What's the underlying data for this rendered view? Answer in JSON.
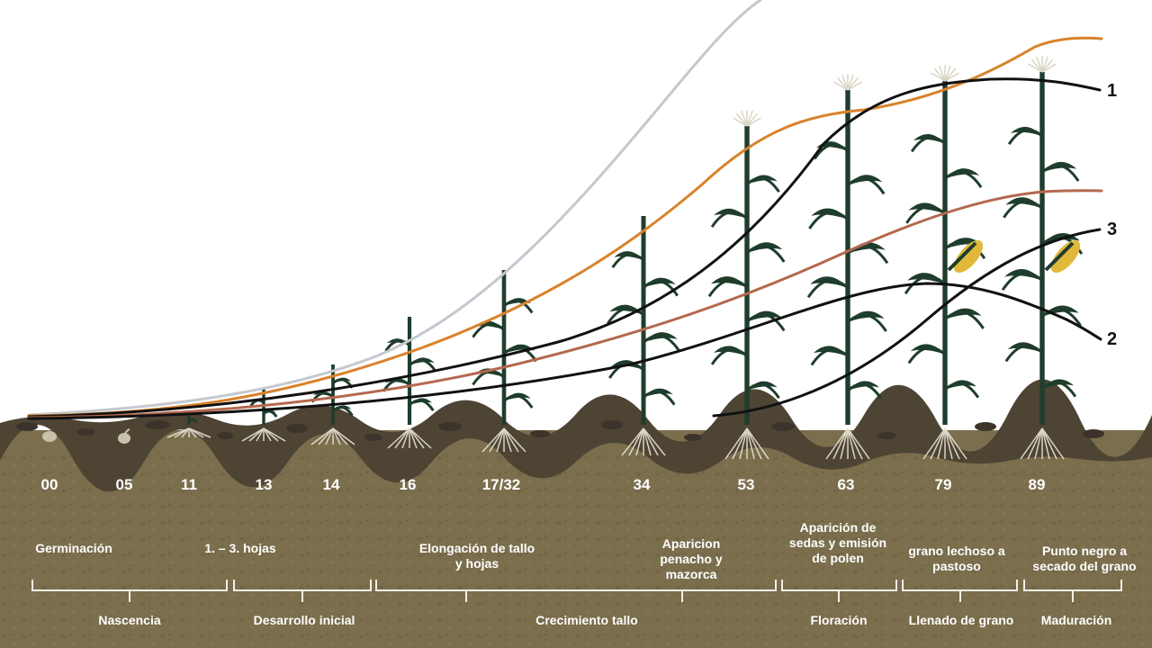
{
  "growth_stages": [
    {
      "code": "00"
    },
    {
      "code": "05"
    },
    {
      "code": "11"
    },
    {
      "code": "13"
    },
    {
      "code": "14"
    },
    {
      "code": "16"
    },
    {
      "code": "17/32"
    },
    {
      "code": "34"
    },
    {
      "code": "53"
    },
    {
      "code": "63"
    },
    {
      "code": "79"
    },
    {
      "code": "89"
    }
  ],
  "sub_phases": {
    "germinacion": "Germinación",
    "hojas": "1. – 3. hojas",
    "elongacion": "Elongación de tallo y hojas",
    "penacho": "Aparicion penacho y mazorca",
    "sedas": "Aparición de sedas y emisión de polen",
    "lechoso": "grano lechoso a pastoso",
    "punto_negro": "Punto negro a secado del grano"
  },
  "phases": {
    "nascencia": "Nascencia",
    "desarrollo": "Desarrollo inicial",
    "crecimiento": "Crecimiento tallo",
    "floracion": "Floración",
    "llenado": "Llenado de grano",
    "maduracion": "Maduración"
  },
  "curve_labels": {
    "c1": "1",
    "c2": "2",
    "c3": "3"
  },
  "colors": {
    "soil": "#7b6e4d",
    "topsoil": "#4e4434",
    "plant": "#1f3d2c",
    "roots": "#e8e3d6",
    "curve_gray": "#c4c8cf",
    "curve_orange": "#d9822b",
    "curve_brown": "#b5684e",
    "curve_black": "#111111",
    "cob": "#e2b83a",
    "text": "#ffffff"
  }
}
